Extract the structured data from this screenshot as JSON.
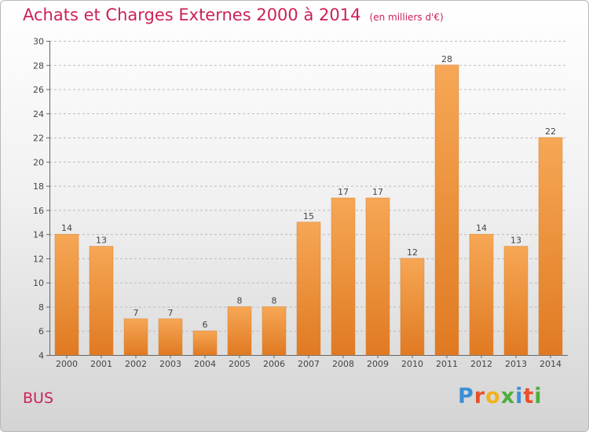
{
  "title": "Achats et Charges Externes 2000 à 2014",
  "unit": "(en milliers d'€)",
  "commune": "BUS",
  "logo": "Proxiti",
  "colors": {
    "title": "#cc2255",
    "bar_light": "#f6a755",
    "bar_dark": "#e07a22",
    "grid": "#bbbbbb"
  },
  "chart_data": {
    "type": "bar",
    "title": "Achats et Charges Externes 2000 à 2014",
    "subtitle": "(en milliers d'€)",
    "categories": [
      "2000",
      "2001",
      "2002",
      "2003",
      "2004",
      "2005",
      "2006",
      "2007",
      "2008",
      "2009",
      "2010",
      "2011",
      "2012",
      "2013",
      "2014"
    ],
    "values": [
      14,
      13,
      7,
      7,
      6,
      8,
      8,
      15,
      17,
      17,
      12,
      28,
      14,
      13,
      22
    ],
    "ylim": [
      4,
      30
    ],
    "yticks": [
      4,
      6,
      8,
      10,
      12,
      14,
      16,
      18,
      20,
      22,
      24,
      26,
      28,
      30
    ],
    "grid": true,
    "grid_style": "dashed horizontal",
    "data_labels": true
  }
}
